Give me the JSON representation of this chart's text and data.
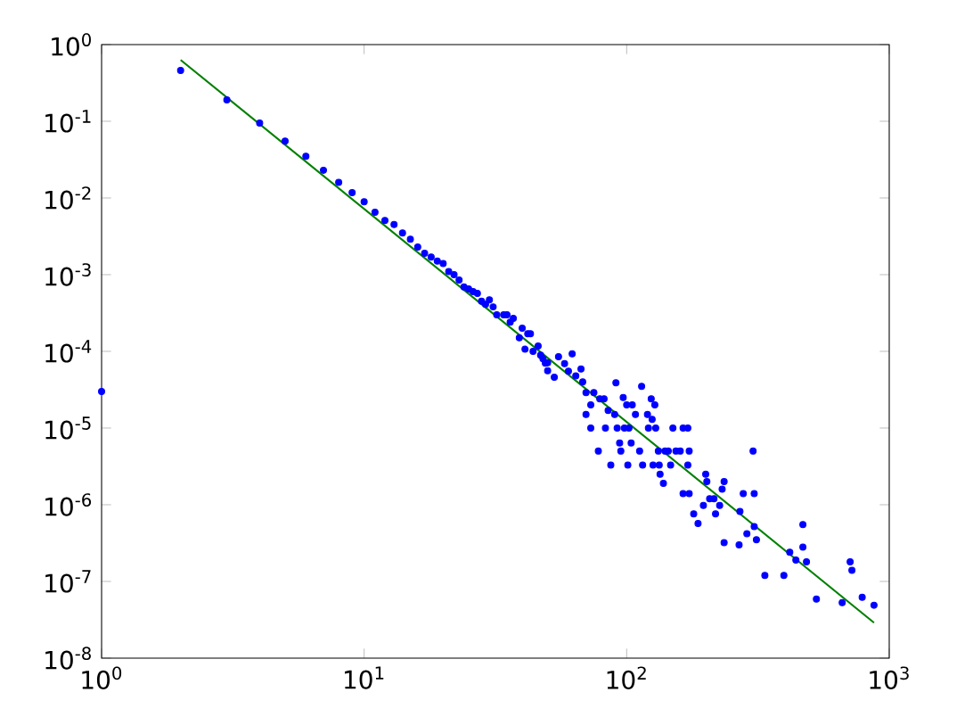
{
  "chart_data": {
    "type": "scatter",
    "log": "xy",
    "xlim": [
      1,
      1000
    ],
    "ylim": [
      1e-08,
      1
    ],
    "xticks": [
      {
        "value": 1,
        "label": "10$^{0}$"
      },
      {
        "value": 10,
        "label": "10$^{1}$"
      },
      {
        "value": 100,
        "label": "10$^{2}$"
      },
      {
        "value": 1000,
        "label": "10$^{3}$"
      }
    ],
    "yticks": [
      {
        "value": 1e-08,
        "label": "10$^{-8}$"
      },
      {
        "value": 1e-07,
        "label": "10$^{-7}$"
      },
      {
        "value": 1e-06,
        "label": "10$^{-6}$"
      },
      {
        "value": 1e-05,
        "label": "10$^{-5}$"
      },
      {
        "value": 0.0001,
        "label": "10$^{-4}$"
      },
      {
        "value": 0.001,
        "label": "10$^{-3}$"
      },
      {
        "value": 0.01,
        "label": "10$^{-2}$"
      },
      {
        "value": 0.1,
        "label": "10$^{-1}$"
      },
      {
        "value": 1,
        "label": "10$^{0}$"
      }
    ],
    "series": [
      {
        "marker": "circle",
        "color": "#0000ff",
        "x": [
          1,
          2,
          3,
          4,
          5,
          6,
          7,
          8,
          9,
          10,
          11,
          12,
          13,
          14,
          15,
          16,
          17,
          18,
          19,
          20,
          21,
          22,
          23,
          24,
          25,
          26,
          27,
          28,
          29,
          30,
          31,
          32,
          34,
          35,
          36,
          37,
          39,
          40,
          41,
          42,
          43,
          44,
          46,
          47,
          48,
          49,
          50,
          50,
          53,
          55,
          58,
          60,
          62,
          64,
          67,
          68,
          70,
          73,
          75,
          79,
          82,
          85,
          91,
          90,
          70,
          73,
          78,
          83,
          87,
          92,
          94,
          95,
          97,
          98,
          102,
          100,
          105,
          104,
          108,
          101,
          114,
          112,
          115,
          120,
          121,
          124,
          125,
          128,
          129,
          132,
          126,
          133,
          134,
          140,
          138,
          144,
          147,
          150,
          154,
          160,
          164,
          171,
          173,
          171,
          164,
          173,
          180,
          187,
          196,
          200,
          202,
          207,
          215,
          218,
          226,
          231,
          235,
          235,
          268,
          270,
          278,
          287,
          303,
          306,
          306,
          312,
          336,
          397,
          418,
          441,
          469,
          469,
          484,
          528,
          662,
          710,
          721,
          789,
          875
        ],
        "values": [
          3e-05,
          0.46,
          0.19,
          0.095,
          0.055,
          0.035,
          0.023,
          0.016,
          0.0117,
          0.0089,
          0.0065,
          0.0051,
          0.0045,
          0.0035,
          0.0029,
          0.0023,
          0.0019,
          0.0017,
          0.0015,
          0.0014,
          0.0011,
          0.001,
          0.00085,
          0.00069,
          0.00065,
          0.0006,
          0.00057,
          0.00045,
          0.00041,
          0.00047,
          0.00038,
          0.0003,
          0.0003,
          0.0003,
          0.00024,
          0.00027,
          0.00015,
          0.0002,
          0.000107,
          0.00017,
          0.00017,
          0.0001,
          0.000117,
          8.9e-05,
          8e-05,
          7e-05,
          7.1e-05,
          5.6e-05,
          4.6e-05,
          8.5e-05,
          6.9e-05,
          5.5e-05,
          9.3e-05,
          4.8e-05,
          5.9e-05,
          4e-05,
          2.9e-05,
          2e-05,
          2.9e-05,
          2.4e-05,
          2.4e-05,
          1.7e-05,
          3.9e-05,
          1.5e-05,
          1.5e-05,
          1e-05,
          5e-06,
          1e-05,
          3.3e-06,
          1e-05,
          6.4e-06,
          5e-06,
          2.5e-05,
          1e-05,
          1e-05,
          2e-05,
          2e-05,
          6.4e-06,
          1.5e-05,
          3.3e-06,
          3.5e-05,
          5e-06,
          3.3e-06,
          1.5e-05,
          1e-05,
          2.4e-05,
          1.3e-05,
          2e-05,
          1e-05,
          5e-06,
          3.3e-06,
          3.3e-06,
          2.5e-06,
          5e-06,
          1.9e-06,
          5e-06,
          3.3e-06,
          1e-05,
          5e-06,
          5e-06,
          1e-05,
          1e-05,
          5e-06,
          3.3e-06,
          1.4e-06,
          1.4e-06,
          7.6e-07,
          5.7e-07,
          9.8e-07,
          2.5e-06,
          2e-06,
          1.2e-06,
          1.2e-06,
          7.6e-07,
          9.8e-07,
          1.6e-06,
          2e-06,
          3.2e-07,
          3e-07,
          8.2e-07,
          1.4e-06,
          4.2e-07,
          5e-06,
          1.4e-06,
          5.2e-07,
          3.5e-07,
          1.2e-07,
          1.2e-07,
          2.4e-07,
          1.9e-07,
          5.5e-07,
          2.8e-07,
          1.8e-07,
          5.9e-08,
          5.3e-08,
          1.8e-07,
          1.4e-07,
          6.2e-08,
          4.9e-08
        ]
      },
      {
        "type": "line",
        "color": "#008000",
        "x": [
          2,
          875
        ],
        "values": [
          0.63,
          2.9e-08
        ]
      }
    ]
  }
}
